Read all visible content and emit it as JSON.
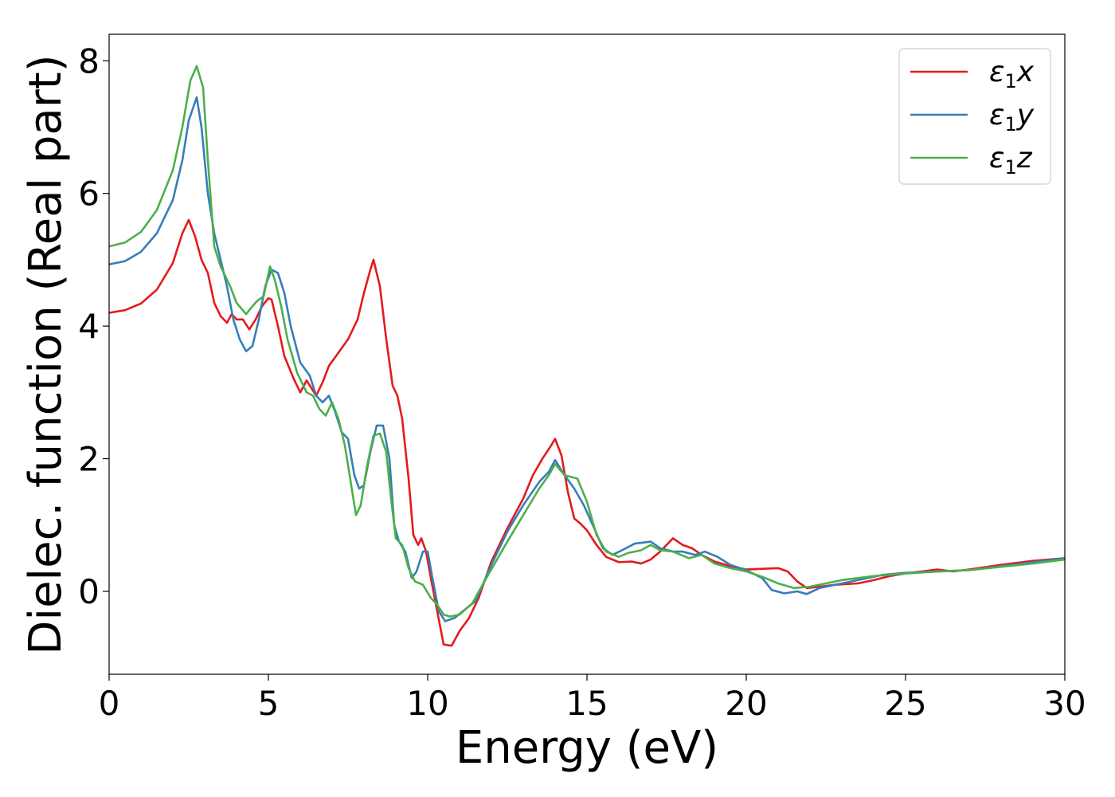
{
  "chart_data": {
    "type": "line",
    "title": "",
    "xlabel": "Energy (eV)",
    "ylabel": "Dielec. function (Real part)",
    "xlim": [
      0,
      30
    ],
    "ylim": [
      -1.25,
      8.4
    ],
    "xticks": [
      0,
      5,
      10,
      15,
      20,
      25,
      30
    ],
    "yticks": [
      0,
      2,
      4,
      6,
      8
    ],
    "grid": false,
    "legend_position": "top-right",
    "series": [
      {
        "name": "ε₁x",
        "name_base": "ε",
        "name_sub": "1",
        "name_tail": "x",
        "color": "#e41a1c",
        "points": [
          [
            0,
            4.2
          ],
          [
            0.5,
            4.24
          ],
          [
            1,
            4.34
          ],
          [
            1.5,
            4.55
          ],
          [
            2,
            4.95
          ],
          [
            2.3,
            5.4
          ],
          [
            2.5,
            5.6
          ],
          [
            2.7,
            5.35
          ],
          [
            2.9,
            5.0
          ],
          [
            3.1,
            4.8
          ],
          [
            3.3,
            4.35
          ],
          [
            3.5,
            4.15
          ],
          [
            3.7,
            4.05
          ],
          [
            3.85,
            4.18
          ],
          [
            4.0,
            4.1
          ],
          [
            4.2,
            4.1
          ],
          [
            4.4,
            3.95
          ],
          [
            4.6,
            4.1
          ],
          [
            4.8,
            4.3
          ],
          [
            5.0,
            4.42
          ],
          [
            5.1,
            4.4
          ],
          [
            5.3,
            4.0
          ],
          [
            5.5,
            3.55
          ],
          [
            5.8,
            3.2
          ],
          [
            6.0,
            3.0
          ],
          [
            6.2,
            3.18
          ],
          [
            6.5,
            2.95
          ],
          [
            6.7,
            3.15
          ],
          [
            6.9,
            3.4
          ],
          [
            7.2,
            3.6
          ],
          [
            7.5,
            3.8
          ],
          [
            7.8,
            4.1
          ],
          [
            8.0,
            4.5
          ],
          [
            8.2,
            4.85
          ],
          [
            8.3,
            5.0
          ],
          [
            8.5,
            4.6
          ],
          [
            8.7,
            3.8
          ],
          [
            8.9,
            3.1
          ],
          [
            9.05,
            2.95
          ],
          [
            9.2,
            2.6
          ],
          [
            9.4,
            1.7
          ],
          [
            9.55,
            0.85
          ],
          [
            9.7,
            0.7
          ],
          [
            9.8,
            0.8
          ],
          [
            9.95,
            0.6
          ],
          [
            10.1,
            0.2
          ],
          [
            10.3,
            -0.3
          ],
          [
            10.5,
            -0.8
          ],
          [
            10.75,
            -0.82
          ],
          [
            11.0,
            -0.6
          ],
          [
            11.3,
            -0.4
          ],
          [
            11.6,
            -0.1
          ],
          [
            12.0,
            0.45
          ],
          [
            12.5,
            0.95
          ],
          [
            13.0,
            1.4
          ],
          [
            13.3,
            1.75
          ],
          [
            13.6,
            2.0
          ],
          [
            13.85,
            2.18
          ],
          [
            14.0,
            2.3
          ],
          [
            14.2,
            2.05
          ],
          [
            14.4,
            1.5
          ],
          [
            14.6,
            1.1
          ],
          [
            14.8,
            1.02
          ],
          [
            15.0,
            0.92
          ],
          [
            15.3,
            0.7
          ],
          [
            15.6,
            0.52
          ],
          [
            16.0,
            0.44
          ],
          [
            16.4,
            0.45
          ],
          [
            16.7,
            0.42
          ],
          [
            17.0,
            0.48
          ],
          [
            17.3,
            0.6
          ],
          [
            17.7,
            0.8
          ],
          [
            18.0,
            0.7
          ],
          [
            18.3,
            0.65
          ],
          [
            18.6,
            0.55
          ],
          [
            19.0,
            0.45
          ],
          [
            19.5,
            0.38
          ],
          [
            20.0,
            0.33
          ],
          [
            20.5,
            0.34
          ],
          [
            21.0,
            0.35
          ],
          [
            21.3,
            0.3
          ],
          [
            21.6,
            0.15
          ],
          [
            21.9,
            0.05
          ],
          [
            22.3,
            0.07
          ],
          [
            22.8,
            0.1
          ],
          [
            23.5,
            0.12
          ],
          [
            24.0,
            0.17
          ],
          [
            24.5,
            0.23
          ],
          [
            25.0,
            0.27
          ],
          [
            26.0,
            0.33
          ],
          [
            26.5,
            0.3
          ],
          [
            27.0,
            0.33
          ],
          [
            28.0,
            0.4
          ],
          [
            29.0,
            0.46
          ],
          [
            30.0,
            0.5
          ]
        ]
      },
      {
        "name": "ε₁y",
        "name_base": "ε",
        "name_sub": "1",
        "name_tail": "y",
        "color": "#377eb8",
        "points": [
          [
            0,
            4.93
          ],
          [
            0.5,
            4.98
          ],
          [
            1,
            5.12
          ],
          [
            1.5,
            5.4
          ],
          [
            2,
            5.9
          ],
          [
            2.3,
            6.5
          ],
          [
            2.5,
            7.1
          ],
          [
            2.75,
            7.45
          ],
          [
            2.9,
            7.0
          ],
          [
            3.1,
            6.0
          ],
          [
            3.3,
            5.4
          ],
          [
            3.5,
            5.0
          ],
          [
            3.7,
            4.6
          ],
          [
            3.9,
            4.1
          ],
          [
            4.1,
            3.8
          ],
          [
            4.3,
            3.62
          ],
          [
            4.5,
            3.7
          ],
          [
            4.7,
            4.1
          ],
          [
            4.9,
            4.6
          ],
          [
            5.1,
            4.85
          ],
          [
            5.3,
            4.8
          ],
          [
            5.5,
            4.5
          ],
          [
            5.7,
            4.0
          ],
          [
            6.0,
            3.45
          ],
          [
            6.3,
            3.25
          ],
          [
            6.5,
            2.95
          ],
          [
            6.7,
            2.85
          ],
          [
            6.9,
            2.95
          ],
          [
            7.1,
            2.7
          ],
          [
            7.3,
            2.4
          ],
          [
            7.5,
            2.3
          ],
          [
            7.7,
            1.75
          ],
          [
            7.85,
            1.55
          ],
          [
            8.0,
            1.6
          ],
          [
            8.2,
            2.1
          ],
          [
            8.4,
            2.5
          ],
          [
            8.6,
            2.5
          ],
          [
            8.8,
            2.0
          ],
          [
            8.95,
            1.0
          ],
          [
            9.1,
            0.75
          ],
          [
            9.3,
            0.6
          ],
          [
            9.5,
            0.2
          ],
          [
            9.65,
            0.3
          ],
          [
            9.85,
            0.6
          ],
          [
            10.0,
            0.6
          ],
          [
            10.15,
            0.2
          ],
          [
            10.35,
            -0.3
          ],
          [
            10.55,
            -0.45
          ],
          [
            10.85,
            -0.4
          ],
          [
            11.1,
            -0.3
          ],
          [
            11.5,
            -0.15
          ],
          [
            12.0,
            0.4
          ],
          [
            12.5,
            0.9
          ],
          [
            13.0,
            1.3
          ],
          [
            13.5,
            1.65
          ],
          [
            13.8,
            1.8
          ],
          [
            14.0,
            1.98
          ],
          [
            14.3,
            1.75
          ],
          [
            14.6,
            1.55
          ],
          [
            14.9,
            1.3
          ],
          [
            15.2,
            0.98
          ],
          [
            15.5,
            0.65
          ],
          [
            15.8,
            0.55
          ],
          [
            16.1,
            0.62
          ],
          [
            16.5,
            0.72
          ],
          [
            17.0,
            0.75
          ],
          [
            17.3,
            0.65
          ],
          [
            17.7,
            0.6
          ],
          [
            18.0,
            0.6
          ],
          [
            18.4,
            0.55
          ],
          [
            18.7,
            0.6
          ],
          [
            19.1,
            0.52
          ],
          [
            19.5,
            0.4
          ],
          [
            20.0,
            0.32
          ],
          [
            20.5,
            0.2
          ],
          [
            20.8,
            0.02
          ],
          [
            21.2,
            -0.03
          ],
          [
            21.6,
            0.0
          ],
          [
            21.9,
            -0.04
          ],
          [
            22.3,
            0.05
          ],
          [
            22.8,
            0.1
          ],
          [
            23.3,
            0.15
          ],
          [
            23.8,
            0.2
          ],
          [
            24.3,
            0.25
          ],
          [
            25.0,
            0.28
          ],
          [
            26.0,
            0.3
          ],
          [
            27.0,
            0.32
          ],
          [
            28.0,
            0.38
          ],
          [
            29.0,
            0.44
          ],
          [
            30.0,
            0.5
          ]
        ]
      },
      {
        "name": "ε₁z",
        "name_base": "ε",
        "name_sub": "1",
        "name_tail": "z",
        "color": "#4daf4a",
        "points": [
          [
            0,
            5.2
          ],
          [
            0.5,
            5.26
          ],
          [
            1,
            5.42
          ],
          [
            1.5,
            5.75
          ],
          [
            2,
            6.35
          ],
          [
            2.3,
            7.0
          ],
          [
            2.55,
            7.7
          ],
          [
            2.75,
            7.92
          ],
          [
            2.95,
            7.6
          ],
          [
            3.1,
            6.5
          ],
          [
            3.3,
            5.2
          ],
          [
            3.5,
            4.9
          ],
          [
            3.8,
            4.6
          ],
          [
            4.0,
            4.35
          ],
          [
            4.3,
            4.18
          ],
          [
            4.5,
            4.3
          ],
          [
            4.65,
            4.38
          ],
          [
            4.85,
            4.45
          ],
          [
            5.05,
            4.9
          ],
          [
            5.2,
            4.7
          ],
          [
            5.4,
            4.3
          ],
          [
            5.6,
            3.8
          ],
          [
            5.9,
            3.3
          ],
          [
            6.2,
            3.0
          ],
          [
            6.4,
            2.95
          ],
          [
            6.6,
            2.75
          ],
          [
            6.8,
            2.65
          ],
          [
            7.0,
            2.85
          ],
          [
            7.2,
            2.6
          ],
          [
            7.4,
            2.2
          ],
          [
            7.6,
            1.6
          ],
          [
            7.75,
            1.15
          ],
          [
            7.9,
            1.3
          ],
          [
            8.1,
            1.9
          ],
          [
            8.3,
            2.35
          ],
          [
            8.5,
            2.38
          ],
          [
            8.7,
            2.1
          ],
          [
            8.85,
            1.4
          ],
          [
            9.0,
            0.8
          ],
          [
            9.2,
            0.7
          ],
          [
            9.4,
            0.35
          ],
          [
            9.6,
            0.15
          ],
          [
            9.85,
            0.1
          ],
          [
            10.1,
            -0.1
          ],
          [
            10.3,
            -0.2
          ],
          [
            10.5,
            -0.35
          ],
          [
            10.7,
            -0.38
          ],
          [
            11.0,
            -0.35
          ],
          [
            11.4,
            -0.18
          ],
          [
            11.9,
            0.25
          ],
          [
            12.5,
            0.75
          ],
          [
            13.0,
            1.15
          ],
          [
            13.5,
            1.55
          ],
          [
            13.8,
            1.75
          ],
          [
            14.0,
            1.92
          ],
          [
            14.3,
            1.75
          ],
          [
            14.7,
            1.7
          ],
          [
            15.0,
            1.35
          ],
          [
            15.3,
            0.85
          ],
          [
            15.6,
            0.6
          ],
          [
            16.0,
            0.52
          ],
          [
            16.3,
            0.58
          ],
          [
            16.7,
            0.62
          ],
          [
            17.0,
            0.7
          ],
          [
            17.3,
            0.62
          ],
          [
            17.7,
            0.6
          ],
          [
            18.2,
            0.5
          ],
          [
            18.6,
            0.55
          ],
          [
            19.0,
            0.42
          ],
          [
            19.5,
            0.35
          ],
          [
            20.0,
            0.3
          ],
          [
            20.5,
            0.22
          ],
          [
            21.0,
            0.12
          ],
          [
            21.5,
            0.05
          ],
          [
            22.0,
            0.07
          ],
          [
            22.5,
            0.12
          ],
          [
            23.0,
            0.17
          ],
          [
            23.5,
            0.2
          ],
          [
            24.0,
            0.23
          ],
          [
            24.5,
            0.25
          ],
          [
            25.0,
            0.27
          ],
          [
            26.0,
            0.3
          ],
          [
            27.0,
            0.32
          ],
          [
            28.0,
            0.37
          ],
          [
            29.0,
            0.42
          ],
          [
            30.0,
            0.48
          ]
        ]
      }
    ]
  }
}
